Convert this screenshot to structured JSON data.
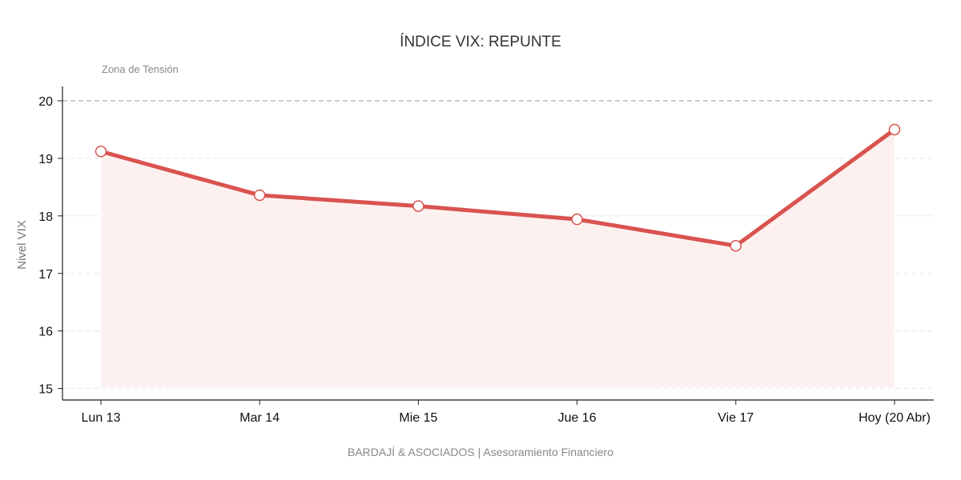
{
  "chart_data": {
    "type": "line",
    "title": "ÍNDICE VIX: REPUNTE",
    "subtitle": "",
    "xlabel": "",
    "ylabel": "Nivel VIX",
    "categories": [
      "Lun 13",
      "Mar 14",
      "Mie 15",
      "Jue 16",
      "Vie 17",
      "Hoy (20 Abr)"
    ],
    "series": [
      {
        "values": [
          19.12,
          18.36,
          18.17,
          17.94,
          17.48,
          19.5
        ]
      }
    ],
    "ylim": [
      14.8,
      20.25
    ],
    "yticks": [
      15,
      16,
      17,
      18,
      19,
      20
    ],
    "grid": true,
    "reference_line": {
      "value": 20,
      "label": "Zona de Tensión",
      "style": "dashed"
    },
    "area_fill": true,
    "colors": {
      "line": "#d9534f",
      "fill": "#fdf1f0",
      "marker_fill": "#ffffff",
      "grid": "#e6e6e6",
      "reference": "#aaaaaa",
      "axis": "#222222"
    },
    "footer": "BARDAJÍ & ASOCIADOS | Asesoramiento Financiero"
  }
}
